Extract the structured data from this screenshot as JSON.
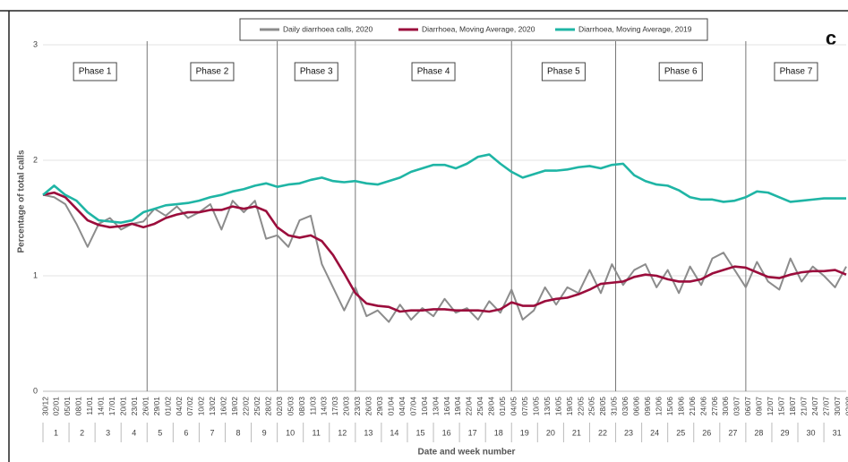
{
  "chart_data": {
    "type": "line",
    "annotation": "c",
    "y_label": "Percentage of total calls",
    "x_label": "Date and week number",
    "ylim": [
      0,
      3
    ],
    "yticks": [
      0,
      1,
      2,
      3
    ],
    "grid": true,
    "legend": "top",
    "categories": [
      "30/12",
      "02/01",
      "05/01",
      "08/01",
      "11/01",
      "14/01",
      "17/01",
      "20/01",
      "23/01",
      "26/01",
      "29/01",
      "01/02",
      "04/02",
      "07/02",
      "10/02",
      "13/02",
      "16/02",
      "19/02",
      "22/02",
      "25/02",
      "28/02",
      "02/03",
      "05/03",
      "08/03",
      "11/03",
      "14/03",
      "17/03",
      "20/03",
      "23/03",
      "26/03",
      "29/03",
      "01/04",
      "04/04",
      "07/04",
      "10/04",
      "13/04",
      "16/04",
      "19/04",
      "22/04",
      "25/04",
      "28/04",
      "01/05",
      "04/05",
      "07/05",
      "10/05",
      "13/05",
      "16/05",
      "19/05",
      "22/05",
      "25/05",
      "28/05",
      "31/05",
      "03/06",
      "06/06",
      "09/06",
      "12/06",
      "15/06",
      "18/06",
      "21/06",
      "24/06",
      "27/06",
      "30/06",
      "03/07",
      "06/07",
      "09/07",
      "12/07",
      "15/07",
      "18/07",
      "21/07",
      "24/07",
      "27/07",
      "30/07",
      "02/08"
    ],
    "weeks": [
      1,
      2,
      3,
      4,
      5,
      6,
      7,
      8,
      9,
      10,
      11,
      12,
      13,
      14,
      15,
      16,
      17,
      18,
      19,
      20,
      21,
      22,
      23,
      24,
      25,
      26,
      27,
      28,
      29,
      30,
      31
    ],
    "phases": [
      {
        "name": "Phase 1",
        "weeks": [
          1,
          4
        ]
      },
      {
        "name": "Phase 2",
        "weeks": [
          5,
          9
        ]
      },
      {
        "name": "Phase 3",
        "weeks": [
          10,
          12
        ]
      },
      {
        "name": "Phase 4",
        "weeks": [
          13,
          18
        ]
      },
      {
        "name": "Phase 5",
        "weeks": [
          19,
          22
        ]
      },
      {
        "name": "Phase 6",
        "weeks": [
          23,
          27
        ]
      },
      {
        "name": "Phase 7",
        "weeks": [
          28,
          31
        ]
      }
    ],
    "series": [
      {
        "name": "Daily diarrhoea calls, 2020",
        "color": "#8c8c8c",
        "values": [
          1.7,
          1.68,
          1.62,
          1.45,
          1.25,
          1.45,
          1.5,
          1.4,
          1.45,
          1.47,
          1.58,
          1.52,
          1.6,
          1.5,
          1.55,
          1.62,
          1.4,
          1.65,
          1.55,
          1.65,
          1.32,
          1.35,
          1.25,
          1.48,
          1.52,
          1.1,
          0.9,
          0.7,
          0.9,
          0.65,
          0.7,
          0.6,
          0.75,
          0.62,
          0.72,
          0.65,
          0.8,
          0.68,
          0.72,
          0.62,
          0.78,
          0.68,
          0.88,
          0.62,
          0.7,
          0.9,
          0.75,
          0.9,
          0.85,
          1.05,
          0.85,
          1.1,
          0.92,
          1.05,
          1.1,
          0.9,
          1.05,
          0.85,
          1.08,
          0.92,
          1.15,
          1.2,
          1.05,
          0.9,
          1.12,
          0.95,
          0.88,
          1.15,
          0.95,
          1.08,
          1.0,
          0.9,
          1.08
        ]
      },
      {
        "name": "Diarrhoea, Moving Average, 2020",
        "color": "#9b0d3c",
        "values": [
          1.7,
          1.72,
          1.68,
          1.58,
          1.48,
          1.44,
          1.42,
          1.43,
          1.45,
          1.42,
          1.45,
          1.5,
          1.53,
          1.55,
          1.55,
          1.57,
          1.57,
          1.6,
          1.58,
          1.6,
          1.56,
          1.42,
          1.35,
          1.33,
          1.35,
          1.3,
          1.18,
          1.02,
          0.85,
          0.76,
          0.74,
          0.73,
          0.69,
          0.7,
          0.7,
          0.71,
          0.71,
          0.7,
          0.7,
          0.7,
          0.69,
          0.71,
          0.77,
          0.74,
          0.74,
          0.78,
          0.8,
          0.81,
          0.84,
          0.88,
          0.93,
          0.94,
          0.95,
          0.99,
          1.01,
          1.0,
          0.97,
          0.95,
          0.95,
          0.97,
          1.02,
          1.05,
          1.08,
          1.07,
          1.03,
          0.99,
          0.98,
          1.01,
          1.03,
          1.04,
          1.04,
          1.05,
          1.01
        ]
      },
      {
        "name": "Diarrhoea, Moving Average, 2019",
        "color": "#1fb5a5",
        "values": [
          1.7,
          1.78,
          1.7,
          1.65,
          1.55,
          1.48,
          1.47,
          1.46,
          1.48,
          1.55,
          1.58,
          1.61,
          1.62,
          1.63,
          1.65,
          1.68,
          1.7,
          1.73,
          1.75,
          1.78,
          1.8,
          1.77,
          1.79,
          1.8,
          1.83,
          1.85,
          1.82,
          1.81,
          1.82,
          1.8,
          1.79,
          1.82,
          1.85,
          1.9,
          1.93,
          1.96,
          1.96,
          1.93,
          1.97,
          2.03,
          2.05,
          1.97,
          1.9,
          1.85,
          1.88,
          1.91,
          1.91,
          1.92,
          1.94,
          1.95,
          1.93,
          1.96,
          1.97,
          1.87,
          1.82,
          1.79,
          1.78,
          1.74,
          1.68,
          1.66,
          1.66,
          1.64,
          1.65,
          1.68,
          1.73,
          1.72,
          1.68,
          1.64,
          1.65,
          1.66,
          1.67,
          1.67,
          1.67
        ]
      }
    ]
  }
}
